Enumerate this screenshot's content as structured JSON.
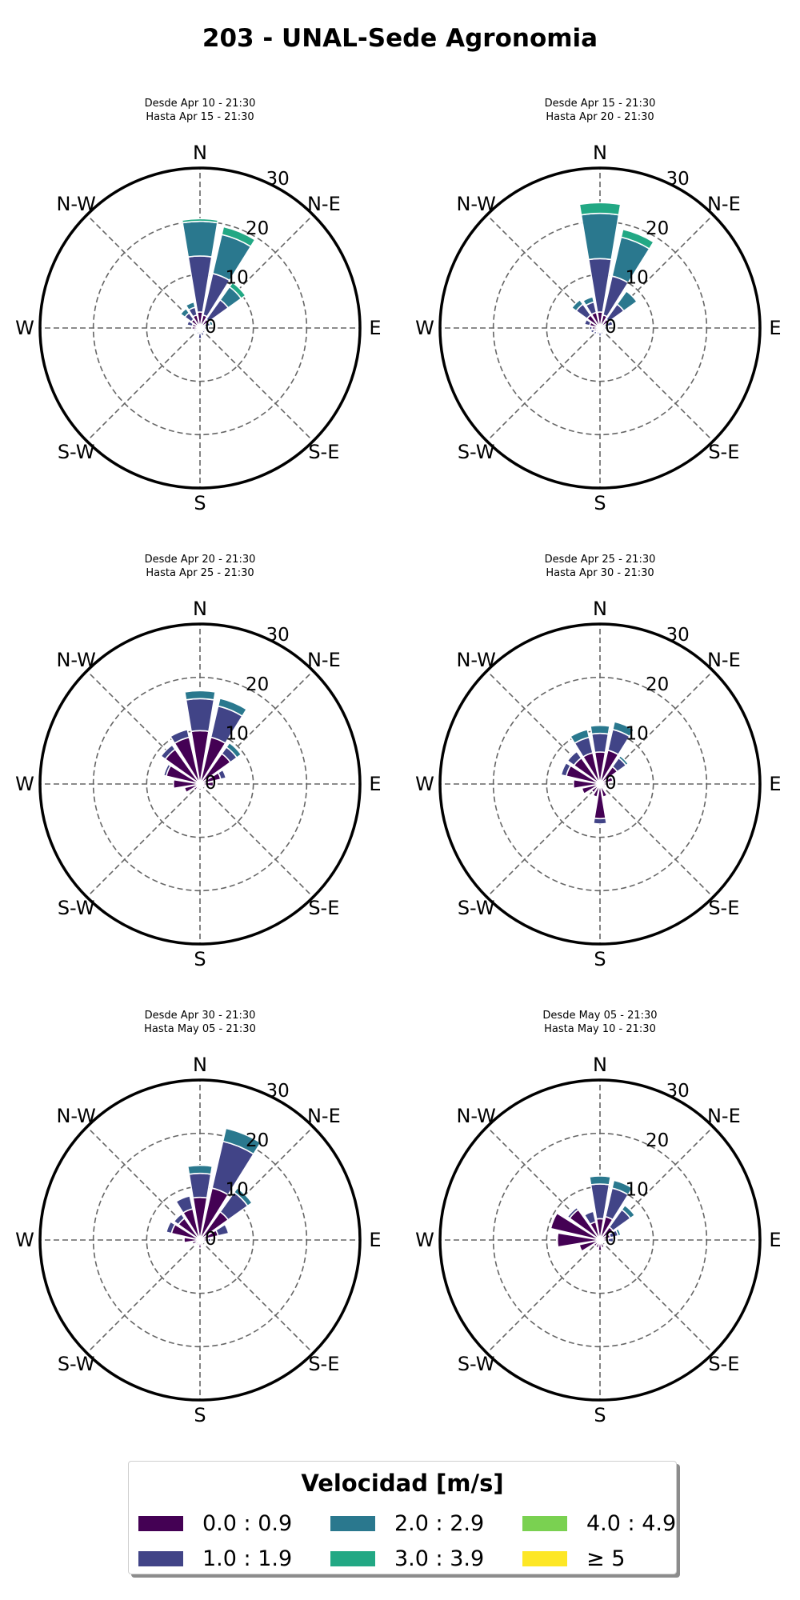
{
  "title": "203 - UNAL-Sede Agronomia",
  "legend": {
    "title": "Velocidad [m/s]",
    "bins": [
      {
        "label": "0.0 : 0.9",
        "color": "#440154"
      },
      {
        "label": "1.0 : 1.9",
        "color": "#414487"
      },
      {
        "label": "2.0 : 2.9",
        "color": "#2a788e"
      },
      {
        "label": "3.0 : 3.9",
        "color": "#22a884"
      },
      {
        "label": "4.0 : 4.9",
        "color": "#7ad151"
      },
      {
        "label": "≥ 5",
        "color": "#fde725"
      }
    ]
  },
  "chart_data": [
    {
      "type": "windrose",
      "subtitle": [
        "Desde Apr 10 - 21:30",
        "Hasta Apr 15 - 21:30"
      ],
      "direction_labels": [
        "N",
        "N-E",
        "E",
        "S-E",
        "S",
        "S-W",
        "W",
        "N-W"
      ],
      "radial_ticks": [
        0,
        10,
        20,
        30
      ],
      "rmax": 30,
      "directions_deg": [
        0,
        22.5,
        45,
        67.5,
        90,
        112.5,
        135,
        157.5,
        180,
        202.5,
        225,
        247.5,
        270,
        292.5,
        315,
        337.5
      ],
      "cumulative": [
        [
          3.0,
          13.5,
          20.0,
          20.5,
          0,
          0
        ],
        [
          2.5,
          10.5,
          18.0,
          19.5,
          0,
          0
        ],
        [
          2.0,
          6.5,
          9.5,
          10.5,
          0,
          0
        ],
        [
          1.0,
          2.0,
          2.5,
          0,
          0,
          0
        ],
        [
          0.8,
          1.5,
          0,
          0,
          0,
          0
        ],
        [
          0.6,
          1.0,
          0,
          0,
          0,
          0
        ],
        [
          0.6,
          1.2,
          0,
          0,
          0,
          0
        ],
        [
          0.8,
          1.5,
          0,
          0,
          0,
          0
        ],
        [
          1.0,
          2.0,
          0,
          0,
          0,
          0
        ],
        [
          0.8,
          1.2,
          0,
          0,
          0,
          0
        ],
        [
          0.6,
          1.0,
          0,
          0,
          0,
          0
        ],
        [
          0.8,
          1.2,
          0,
          0,
          0,
          0
        ],
        [
          1.5,
          0,
          0,
          0,
          0,
          0
        ],
        [
          1.5,
          2.5,
          0,
          0,
          0,
          0
        ],
        [
          2.0,
          3.5,
          4.5,
          0,
          0,
          0
        ],
        [
          2.5,
          4.0,
          5.0,
          0,
          0,
          0
        ]
      ]
    },
    {
      "type": "windrose",
      "subtitle": [
        "Desde Apr 15 - 21:30",
        "Hasta Apr 20 - 21:30"
      ],
      "direction_labels": [
        "N",
        "N-E",
        "E",
        "S-E",
        "S",
        "S-W",
        "W",
        "N-W"
      ],
      "radial_ticks": [
        0,
        10,
        20,
        30
      ],
      "rmax": 30,
      "directions_deg": [
        0,
        22.5,
        45,
        67.5,
        90,
        112.5,
        135,
        157.5,
        180,
        202.5,
        225,
        247.5,
        270,
        292.5,
        315,
        337.5
      ],
      "cumulative": [
        [
          3.0,
          13.0,
          21.5,
          23.5,
          0,
          0
        ],
        [
          2.5,
          10.0,
          17.5,
          19.0,
          0,
          0
        ],
        [
          2.0,
          5.5,
          8.5,
          0,
          0,
          0
        ],
        [
          1.0,
          2.5,
          3.0,
          0,
          0,
          0
        ],
        [
          0.8,
          1.5,
          0,
          0,
          0,
          0
        ],
        [
          0.6,
          1.0,
          0,
          0,
          0,
          0
        ],
        [
          0.6,
          1.0,
          0,
          0,
          0,
          0
        ],
        [
          0.8,
          1.2,
          0,
          0,
          0,
          0
        ],
        [
          0.8,
          1.5,
          0,
          0,
          0,
          0
        ],
        [
          0.8,
          1.2,
          0,
          0,
          0,
          0
        ],
        [
          1.0,
          1.5,
          0,
          0,
          0,
          0
        ],
        [
          1.2,
          1.8,
          0,
          0,
          0,
          0
        ],
        [
          1.5,
          2.0,
          0,
          0,
          0,
          0
        ],
        [
          2.0,
          3.0,
          0,
          0,
          0,
          0
        ],
        [
          3.0,
          5.5,
          6.5,
          0,
          0,
          0
        ],
        [
          3.0,
          5.0,
          6.0,
          0,
          0,
          0
        ]
      ]
    },
    {
      "type": "windrose",
      "subtitle": [
        "Desde Apr 20 - 21:30",
        "Hasta Apr 25 - 21:30"
      ],
      "direction_labels": [
        "N",
        "N-E",
        "E",
        "S-E",
        "S",
        "S-W",
        "W",
        "N-W"
      ],
      "radial_ticks": [
        0,
        10,
        20,
        30
      ],
      "rmax": 30,
      "directions_deg": [
        0,
        22.5,
        45,
        67.5,
        90,
        112.5,
        135,
        157.5,
        180,
        202.5,
        225,
        247.5,
        270,
        292.5,
        315,
        337.5
      ],
      "cumulative": [
        [
          10.0,
          16.0,
          17.5,
          0,
          0,
          0
        ],
        [
          9.0,
          15.0,
          16.5,
          0,
          0,
          0
        ],
        [
          7.0,
          8.5,
          9.5,
          0,
          0,
          0
        ],
        [
          4.0,
          5.0,
          0,
          0,
          0,
          0
        ],
        [
          2.5,
          0,
          0,
          0,
          0,
          0
        ],
        [
          1.0,
          0,
          0,
          0,
          0,
          0
        ],
        [
          0.8,
          0,
          0,
          0,
          0,
          0
        ],
        [
          0.8,
          0,
          0,
          0,
          0,
          0
        ],
        [
          0.8,
          0,
          0,
          0,
          0,
          0
        ],
        [
          1.0,
          0,
          0,
          0,
          0,
          0
        ],
        [
          1.5,
          0,
          0,
          0,
          0,
          0
        ],
        [
          3.0,
          0,
          0,
          0,
          0,
          0
        ],
        [
          5.0,
          0,
          0,
          0,
          0,
          0
        ],
        [
          6.5,
          7.0,
          0,
          0,
          0,
          0
        ],
        [
          8.0,
          9.0,
          0,
          0,
          0,
          0
        ],
        [
          9.0,
          10.5,
          0,
          0,
          0,
          0
        ]
      ]
    },
    {
      "type": "windrose",
      "subtitle": [
        "Desde Apr 25 - 21:30",
        "Hasta Apr 30 - 21:30"
      ],
      "direction_labels": [
        "N",
        "N-E",
        "E",
        "S-E",
        "S",
        "S-W",
        "W",
        "N-W"
      ],
      "radial_ticks": [
        0,
        10,
        20,
        30
      ],
      "rmax": 30,
      "directions_deg": [
        0,
        22.5,
        45,
        67.5,
        90,
        112.5,
        135,
        157.5,
        180,
        202.5,
        225,
        247.5,
        270,
        292.5,
        315,
        337.5
      ],
      "cumulative": [
        [
          6.0,
          9.5,
          11.0,
          0,
          0,
          0
        ],
        [
          6.5,
          10.5,
          12.0,
          0,
          0,
          0
        ],
        [
          4.0,
          6.0,
          6.5,
          0,
          0,
          0
        ],
        [
          2.5,
          3.0,
          0,
          0,
          0,
          0
        ],
        [
          1.5,
          0,
          0,
          0,
          0,
          0
        ],
        [
          1.0,
          0,
          0,
          0,
          0,
          0
        ],
        [
          1.0,
          0,
          0,
          0,
          0,
          0
        ],
        [
          2.5,
          0,
          0,
          0,
          0,
          0
        ],
        [
          6.5,
          7.5,
          0,
          0,
          0,
          0
        ],
        [
          2.5,
          0,
          0,
          0,
          0,
          0
        ],
        [
          2.0,
          0,
          0,
          0,
          0,
          0
        ],
        [
          3.5,
          0,
          0,
          0,
          0,
          0
        ],
        [
          5.0,
          0,
          0,
          0,
          0,
          0
        ],
        [
          6.5,
          7.5,
          0,
          0,
          0,
          0
        ],
        [
          6.0,
          7.5,
          0,
          0,
          0,
          0
        ],
        [
          6.0,
          9.0,
          10.5,
          0,
          0,
          0
        ]
      ]
    },
    {
      "type": "windrose",
      "subtitle": [
        "Desde Apr 30 - 21:30",
        "Hasta May 05 - 21:30"
      ],
      "direction_labels": [
        "N",
        "N-E",
        "E",
        "S-E",
        "S",
        "S-W",
        "W",
        "N-W"
      ],
      "radial_ticks": [
        0,
        10,
        20,
        30
      ],
      "rmax": 30,
      "directions_deg": [
        0,
        22.5,
        45,
        67.5,
        90,
        112.5,
        135,
        157.5,
        180,
        202.5,
        225,
        247.5,
        270,
        292.5,
        315,
        337.5
      ],
      "cumulative": [
        [
          8.0,
          12.5,
          14.0,
          0,
          0,
          0
        ],
        [
          10.0,
          19.0,
          21.5,
          0,
          0,
          0
        ],
        [
          6.5,
          11.0,
          12.0,
          0,
          0,
          0
        ],
        [
          3.5,
          5.5,
          0,
          0,
          0,
          0
        ],
        [
          1.5,
          2.0,
          0,
          0,
          0,
          0
        ],
        [
          1.0,
          0,
          0,
          0,
          0,
          0
        ],
        [
          0.8,
          0,
          0,
          0,
          0,
          0
        ],
        [
          1.0,
          0,
          0,
          0,
          0,
          0
        ],
        [
          1.5,
          0,
          0,
          0,
          0,
          0
        ],
        [
          1.0,
          0,
          0,
          0,
          0,
          0
        ],
        [
          1.0,
          0,
          0,
          0,
          0,
          0
        ],
        [
          1.5,
          0,
          0,
          0,
          0,
          0
        ],
        [
          3.0,
          0,
          0,
          0,
          0,
          0
        ],
        [
          5.5,
          6.5,
          0,
          0,
          0,
          0
        ],
        [
          5.0,
          6.0,
          0,
          0,
          0,
          0
        ],
        [
          6.0,
          8.5,
          0,
          0,
          0,
          0
        ]
      ]
    },
    {
      "type": "windrose",
      "subtitle": [
        "Desde May 05 - 21:30",
        "Hasta May 10 - 21:30"
      ],
      "direction_labels": [
        "N",
        "N-E",
        "E",
        "S-E",
        "S",
        "S-W",
        "W",
        "N-W"
      ],
      "radial_ticks": [
        0,
        10,
        20,
        30
      ],
      "rmax": 30,
      "directions_deg": [
        0,
        22.5,
        45,
        67.5,
        90,
        112.5,
        135,
        157.5,
        180,
        202.5,
        225,
        247.5,
        270,
        292.5,
        315,
        337.5
      ],
      "cumulative": [
        [
          4.0,
          10.5,
          12.0,
          0,
          0,
          0
        ],
        [
          4.5,
          10.0,
          11.5,
          0,
          0,
          0
        ],
        [
          3.0,
          7.0,
          8.0,
          0,
          0,
          0
        ],
        [
          2.0,
          3.5,
          4.0,
          0,
          0,
          0
        ],
        [
          1.5,
          2.5,
          0,
          0,
          0,
          0
        ],
        [
          0.8,
          0,
          0,
          0,
          0,
          0
        ],
        [
          0.8,
          0,
          0,
          0,
          0,
          0
        ],
        [
          1.5,
          0,
          0,
          0,
          0,
          0
        ],
        [
          2.0,
          0,
          0,
          0,
          0,
          0
        ],
        [
          1.5,
          0,
          0,
          0,
          0,
          0
        ],
        [
          1.5,
          0,
          0,
          0,
          0,
          0
        ],
        [
          4.0,
          0,
          0,
          0,
          0,
          0
        ],
        [
          8.0,
          0,
          0,
          0,
          0,
          0
        ],
        [
          9.5,
          0,
          0,
          0,
          0,
          0
        ],
        [
          7.0,
          7.5,
          0,
          0,
          0,
          0
        ],
        [
          3.5,
          5.5,
          0,
          0,
          0,
          0
        ]
      ]
    }
  ]
}
